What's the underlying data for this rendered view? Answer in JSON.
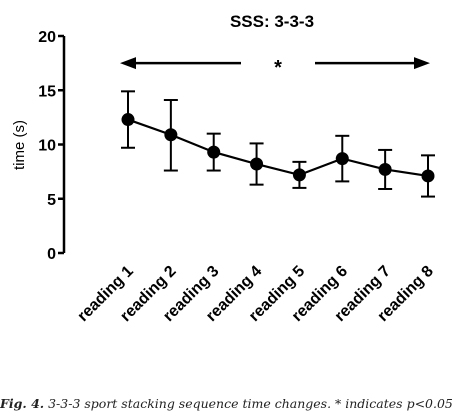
{
  "caption": {
    "label": "Fig. 4.",
    "text": "3-3-3 sport stacking sequence time changes. * indicates p<0.05"
  },
  "chart_data": {
    "type": "line",
    "title": "SSS: 3-3-3",
    "xlabel": "",
    "ylabel": "time (s)",
    "ylim": [
      0,
      20
    ],
    "yticks": [
      0,
      5,
      10,
      15,
      20
    ],
    "categories": [
      "reading 1",
      "reading 2",
      "reading 3",
      "reading 4",
      "reading 5",
      "reading 6",
      "reading 7",
      "reading 8"
    ],
    "series": [
      {
        "values": [
          12.3,
          10.9,
          9.3,
          8.2,
          7.2,
          8.7,
          7.7,
          7.1
        ],
        "error_upper": [
          14.9,
          14.1,
          11.0,
          10.1,
          8.4,
          10.8,
          9.5,
          9.0
        ],
        "error_lower": [
          9.7,
          7.6,
          7.6,
          6.3,
          6.0,
          6.6,
          5.9,
          5.2
        ]
      }
    ],
    "annotation": {
      "text": "*",
      "span": [
        "reading 1",
        "reading 8"
      ],
      "y": 17.5
    },
    "grid": false,
    "legend": "none",
    "colors": {
      "line": "#000000"
    }
  }
}
